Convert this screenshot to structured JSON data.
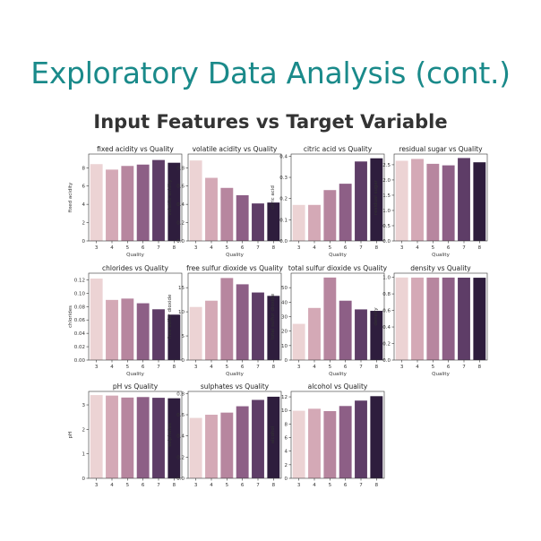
{
  "slide": {
    "title": "Exploratory Data Analysis (cont.)",
    "subtitle": "Input Features vs Target Variable"
  },
  "colors": [
    "#ecd3d4",
    "#d4a9b6",
    "#b7869f",
    "#8d5f86",
    "#5e3d67",
    "#2e1d3d"
  ],
  "chart_data": [
    {
      "type": "bar",
      "title": "fixed acidity vs Quality",
      "xlabel": "Quality",
      "ylabel": "fixed acidity",
      "categories": [
        "3",
        "4",
        "5",
        "6",
        "7",
        "8"
      ],
      "values": [
        8.4,
        7.8,
        8.2,
        8.35,
        8.85,
        8.55
      ],
      "ylim": [
        0,
        9.5
      ],
      "yticks": [
        0,
        2,
        4,
        6,
        8
      ],
      "ytick_labels": [
        "0",
        "2",
        "4",
        "6",
        "8"
      ]
    },
    {
      "type": "bar",
      "title": "volatile acidity vs Quality",
      "xlabel": "Quality",
      "ylabel": "volatile acidity",
      "categories": [
        "3",
        "4",
        "5",
        "6",
        "7",
        "8"
      ],
      "values": [
        0.88,
        0.69,
        0.58,
        0.5,
        0.41,
        0.42
      ],
      "ylim": [
        0,
        0.95
      ],
      "yticks": [
        0,
        0.2,
        0.4,
        0.6,
        0.8
      ],
      "ytick_labels": [
        "0.0",
        "0.2",
        "0.4",
        "0.6",
        "0.8"
      ]
    },
    {
      "type": "bar",
      "title": "citric acid vs Quality",
      "xlabel": "Quality",
      "ylabel": "citric acid",
      "categories": [
        "3",
        "4",
        "5",
        "6",
        "7",
        "8"
      ],
      "values": [
        0.17,
        0.17,
        0.24,
        0.27,
        0.375,
        0.39
      ],
      "ylim": [
        0,
        0.41
      ],
      "yticks": [
        0,
        0.1,
        0.2,
        0.3,
        0.4
      ],
      "ytick_labels": [
        "0.0",
        "0.1",
        "0.2",
        "0.3",
        "0.4"
      ]
    },
    {
      "type": "bar",
      "title": "residual sugar vs Quality",
      "xlabel": "Quality",
      "ylabel": "residual sugar",
      "categories": [
        "3",
        "4",
        "5",
        "6",
        "7",
        "8"
      ],
      "values": [
        2.63,
        2.69,
        2.53,
        2.48,
        2.72,
        2.58
      ],
      "ylim": [
        0,
        2.85
      ],
      "yticks": [
        0,
        0.5,
        1.0,
        1.5,
        2.0,
        2.5
      ],
      "ytick_labels": [
        "0.0",
        "0.5",
        "1.0",
        "1.5",
        "2.0",
        "2.5"
      ]
    },
    {
      "type": "bar",
      "title": "chlorides vs Quality",
      "xlabel": "Quality",
      "ylabel": "chlorides",
      "categories": [
        "3",
        "4",
        "5",
        "6",
        "7",
        "8"
      ],
      "values": [
        0.122,
        0.09,
        0.092,
        0.085,
        0.076,
        0.068
      ],
      "ylim": [
        0,
        0.13
      ],
      "yticks": [
        0,
        0.02,
        0.04,
        0.06,
        0.08,
        0.1,
        0.12
      ],
      "ytick_labels": [
        "0.00",
        "0.02",
        "0.04",
        "0.06",
        "0.08",
        "0.10",
        "0.12"
      ]
    },
    {
      "type": "bar",
      "title": "free sulfur dioxide vs Quality",
      "xlabel": "Quality",
      "ylabel": "free sulfur dioxide",
      "categories": [
        "3",
        "4",
        "5",
        "6",
        "7",
        "8"
      ],
      "values": [
        11.0,
        12.3,
        17.0,
        15.7,
        14.0,
        13.3
      ],
      "ylim": [
        0,
        18.0
      ],
      "yticks": [
        0,
        5,
        10,
        15
      ],
      "ytick_labels": [
        "0",
        "5",
        "10",
        "15"
      ]
    },
    {
      "type": "bar",
      "title": "total sulfur dioxide vs Quality",
      "xlabel": "Quality",
      "ylabel": "total sulfur dioxide",
      "categories": [
        "3",
        "4",
        "5",
        "6",
        "7",
        "8"
      ],
      "values": [
        25,
        36,
        57,
        41,
        35,
        34
      ],
      "ylim": [
        0,
        60
      ],
      "yticks": [
        0,
        10,
        20,
        30,
        40,
        50
      ],
      "ytick_labels": [
        "0",
        "10",
        "20",
        "30",
        "40",
        "50"
      ]
    },
    {
      "type": "bar",
      "title": "density vs Quality",
      "xlabel": "Quality",
      "ylabel": "density",
      "categories": [
        "3",
        "4",
        "5",
        "6",
        "7",
        "8"
      ],
      "values": [
        0.998,
        0.997,
        0.997,
        0.997,
        0.996,
        0.995
      ],
      "ylim": [
        0,
        1.05
      ],
      "yticks": [
        0,
        0.2,
        0.4,
        0.6,
        0.8,
        1.0
      ],
      "ytick_labels": [
        "0.0",
        "0.2",
        "0.4",
        "0.6",
        "0.8",
        "1.0"
      ]
    },
    {
      "type": "bar",
      "title": "pH vs Quality",
      "xlabel": "",
      "ylabel": "pH",
      "categories": [
        "3",
        "4",
        "5",
        "6",
        "7",
        "8"
      ],
      "values": [
        3.4,
        3.38,
        3.3,
        3.32,
        3.29,
        3.27
      ],
      "ylim": [
        0,
        3.55
      ],
      "yticks": [
        0,
        1,
        2,
        3
      ],
      "ytick_labels": [
        "0",
        "1",
        "2",
        "3"
      ]
    },
    {
      "type": "bar",
      "title": "sulphates vs Quality",
      "xlabel": "",
      "ylabel": "sulphates",
      "categories": [
        "3",
        "4",
        "5",
        "6",
        "7",
        "8"
      ],
      "values": [
        0.57,
        0.6,
        0.62,
        0.68,
        0.74,
        0.77
      ],
      "ylim": [
        0,
        0.82
      ],
      "yticks": [
        0,
        0.2,
        0.4,
        0.6,
        0.8
      ],
      "ytick_labels": [
        "0.0",
        "0.2",
        "0.4",
        "0.6",
        "0.8"
      ]
    },
    {
      "type": "bar",
      "title": "alcohol vs Quality",
      "xlabel": "",
      "ylabel": "alcohol",
      "categories": [
        "3",
        "4",
        "5",
        "6",
        "7",
        "8"
      ],
      "values": [
        9.95,
        10.25,
        9.9,
        10.65,
        11.45,
        12.1
      ],
      "ylim": [
        0,
        12.8
      ],
      "yticks": [
        0,
        2,
        4,
        6,
        8,
        10,
        12
      ],
      "ytick_labels": [
        "0",
        "2",
        "4",
        "6",
        "8",
        "10",
        "12"
      ]
    }
  ]
}
